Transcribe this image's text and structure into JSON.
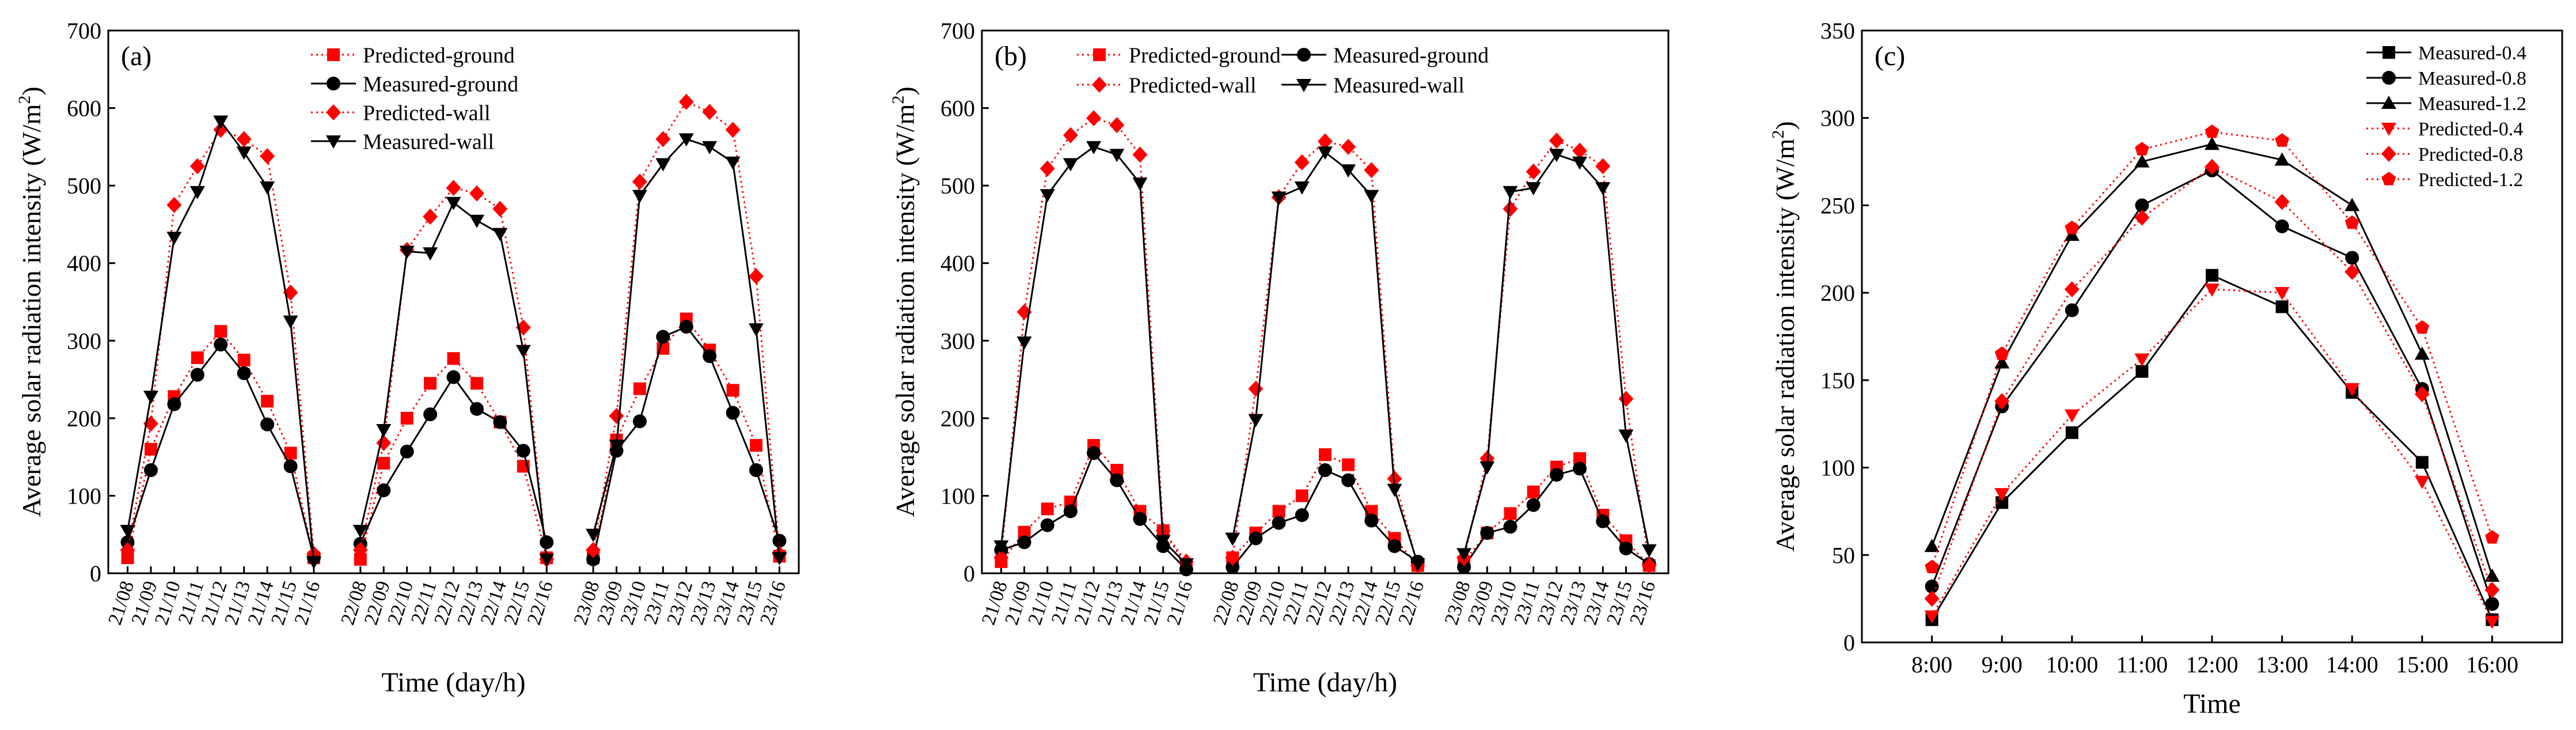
{
  "chart_data": [
    {
      "type": "line",
      "panel_label": "(a)",
      "xlabel": "Time (day/h)",
      "ylabel": "Average solar radiation intensity (W/m",
      "ylabel_sup": "2",
      "ylabel_close": ")",
      "ylim": [
        0,
        700
      ],
      "yticks": [
        "0",
        "100",
        "200",
        "300",
        "400",
        "500",
        "600",
        "700"
      ],
      "x_groups": [
        [
          "21/08",
          "21/09",
          "21/10",
          "21/11",
          "21/12",
          "21/13",
          "21/14",
          "21/15",
          "21/16"
        ],
        [
          "22/08",
          "22/09",
          "22/10",
          "22/11",
          "22/12",
          "22/13",
          "22/14",
          "22/15",
          "22/16"
        ],
        [
          "23/08",
          "23/09",
          "23/10",
          "23/11",
          "23/12",
          "23/13",
          "23/14",
          "23/15",
          "23/16"
        ]
      ],
      "series": [
        {
          "name": "Predicted-ground",
          "style": "dotted",
          "color": "#ff0000",
          "marker": "square",
          "values": [
            [
              20,
              160,
              228,
              278,
              312,
              275,
              222,
              155,
              20
            ],
            [
              18,
              142,
              200,
              245,
              277,
              245,
              195,
              138,
              20
            ],
            [
              20,
              172,
              238,
              290,
              328,
              288,
              236,
              165,
              22
            ]
          ]
        },
        {
          "name": "Measured-ground",
          "style": "solid",
          "color": "#000000",
          "marker": "circle",
          "values": [
            [
              40,
              133,
              218,
              256,
              295,
              258,
              192,
              138,
              20
            ],
            [
              38,
              107,
              157,
              205,
              253,
              212,
              195,
              158,
              40
            ],
            [
              18,
              158,
              196,
              305,
              318,
              280,
              207,
              133,
              42
            ]
          ]
        },
        {
          "name": "Predicted-wall",
          "style": "dotted",
          "color": "#ff0000",
          "marker": "diamond",
          "values": [
            [
              30,
              193,
              475,
              525,
              572,
              560,
              538,
              362,
              25
            ],
            [
              30,
              168,
              417,
              460,
              497,
              490,
              470,
              317,
              18
            ],
            [
              30,
              203,
              505,
              560,
              608,
              595,
              572,
              383,
              25
            ]
          ]
        },
        {
          "name": "Measured-wall",
          "style": "solid",
          "color": "#000000",
          "marker": "triangle-down",
          "values": [
            [
              55,
              228,
              433,
              492,
              583,
              543,
              498,
              325,
              15
            ],
            [
              55,
              185,
              415,
              413,
              478,
              455,
              438,
              287,
              18
            ],
            [
              50,
              165,
              487,
              528,
              560,
              550,
              530,
              315,
              20
            ]
          ]
        }
      ],
      "legend": "top-center"
    },
    {
      "type": "line",
      "panel_label": "(b)",
      "xlabel": "Time (day/h)",
      "ylabel": "Average solar radiation intensity (W/m",
      "ylabel_sup": "2",
      "ylabel_close": ")",
      "ylim": [
        0,
        700
      ],
      "yticks": [
        "0",
        "100",
        "200",
        "300",
        "400",
        "500",
        "600",
        "700"
      ],
      "x_groups": [
        [
          "21/08",
          "21/09",
          "21/10",
          "21/11",
          "21/12",
          "21/13",
          "21/14",
          "21/15",
          "21/16"
        ],
        [
          "22/08",
          "22/09",
          "22/10",
          "22/11",
          "22/12",
          "22/13",
          "22/14",
          "22/15",
          "22/16"
        ],
        [
          "23/08",
          "23/09",
          "23/10",
          "23/11",
          "23/12",
          "23/13",
          "23/14",
          "23/15",
          "23/16"
        ]
      ],
      "series": [
        {
          "name": "Predicted-ground",
          "style": "dotted",
          "color": "#ff0000",
          "marker": "square",
          "values": [
            [
              15,
              53,
              83,
              92,
              165,
              133,
              80,
              55,
              10
            ],
            [
              20,
              52,
              80,
              100,
              153,
              140,
              80,
              45,
              10
            ],
            [
              15,
              52,
              77,
              105,
              137,
              148,
              75,
              42,
              10
            ]
          ]
        },
        {
          "name": "Measured-ground",
          "style": "solid",
          "color": "#000000",
          "marker": "circle",
          "values": [
            [
              30,
              40,
              62,
              80,
              155,
              120,
              70,
              35,
              5
            ],
            [
              8,
              45,
              65,
              75,
              133,
              120,
              68,
              35,
              15
            ],
            [
              8,
              52,
              60,
              88,
              127,
              135,
              67,
              32,
              12
            ]
          ]
        },
        {
          "name": "Predicted-wall",
          "style": "dotted",
          "color": "#ff0000",
          "marker": "diamond",
          "values": [
            [
              20,
              337,
              522,
              565,
              587,
              578,
              540,
              55,
              15
            ],
            [
              20,
              238,
              485,
              530,
              557,
              550,
              520,
              122,
              10
            ],
            [
              20,
              148,
              470,
              518,
              558,
              545,
              525,
              225,
              10
            ]
          ]
        },
        {
          "name": "Measured-wall",
          "style": "solid",
          "color": "#000000",
          "marker": "triangle-down",
          "values": [
            [
              35,
              298,
              488,
              528,
              550,
              540,
              503,
              42,
              12
            ],
            [
              45,
              198,
              485,
              498,
              543,
              520,
              487,
              108,
              12
            ],
            [
              25,
              137,
              492,
              497,
              540,
              530,
              497,
              178,
              30
            ]
          ]
        }
      ],
      "legend": "top-center"
    },
    {
      "type": "line",
      "panel_label": "(c)",
      "xlabel": "Time",
      "ylabel": "Average solar radiation intensity (W/m",
      "ylabel_sup": "2",
      "ylabel_close": ")",
      "ylim": [
        0,
        350
      ],
      "yticks": [
        "0",
        "50",
        "100",
        "150",
        "200",
        "250",
        "300",
        "350"
      ],
      "categories": [
        "8:00",
        "9:00",
        "10:00",
        "11:00",
        "12:00",
        "13:00",
        "14:00",
        "15:00",
        "16:00"
      ],
      "series": [
        {
          "name": "Measured-0.4",
          "style": "solid",
          "color": "#000000",
          "marker": "square",
          "values": [
            13,
            80,
            120,
            155,
            210,
            192,
            143,
            103,
            13
          ]
        },
        {
          "name": "Measured-0.8",
          "style": "solid",
          "color": "#000000",
          "marker": "circle",
          "values": [
            32,
            135,
            190,
            250,
            270,
            238,
            220,
            145,
            22
          ]
        },
        {
          "name": "Measured-1.2",
          "style": "solid",
          "color": "#000000",
          "marker": "triangle-up",
          "values": [
            55,
            160,
            233,
            275,
            285,
            276,
            250,
            165,
            38
          ]
        },
        {
          "name": "Predicted-0.4",
          "style": "dotted",
          "color": "#ff0000",
          "marker": "triangle-down",
          "values": [
            15,
            85,
            130,
            162,
            202,
            200,
            145,
            92,
            12
          ]
        },
        {
          "name": "Predicted-0.8",
          "style": "dotted",
          "color": "#ff0000",
          "marker": "diamond",
          "values": [
            25,
            138,
            202,
            243,
            272,
            252,
            212,
            142,
            30
          ]
        },
        {
          "name": "Predicted-1.2",
          "style": "dotted",
          "color": "#ff0000",
          "marker": "pentagon",
          "values": [
            43,
            165,
            237,
            282,
            292,
            287,
            240,
            180,
            60
          ]
        }
      ],
      "legend": "top-right"
    }
  ]
}
